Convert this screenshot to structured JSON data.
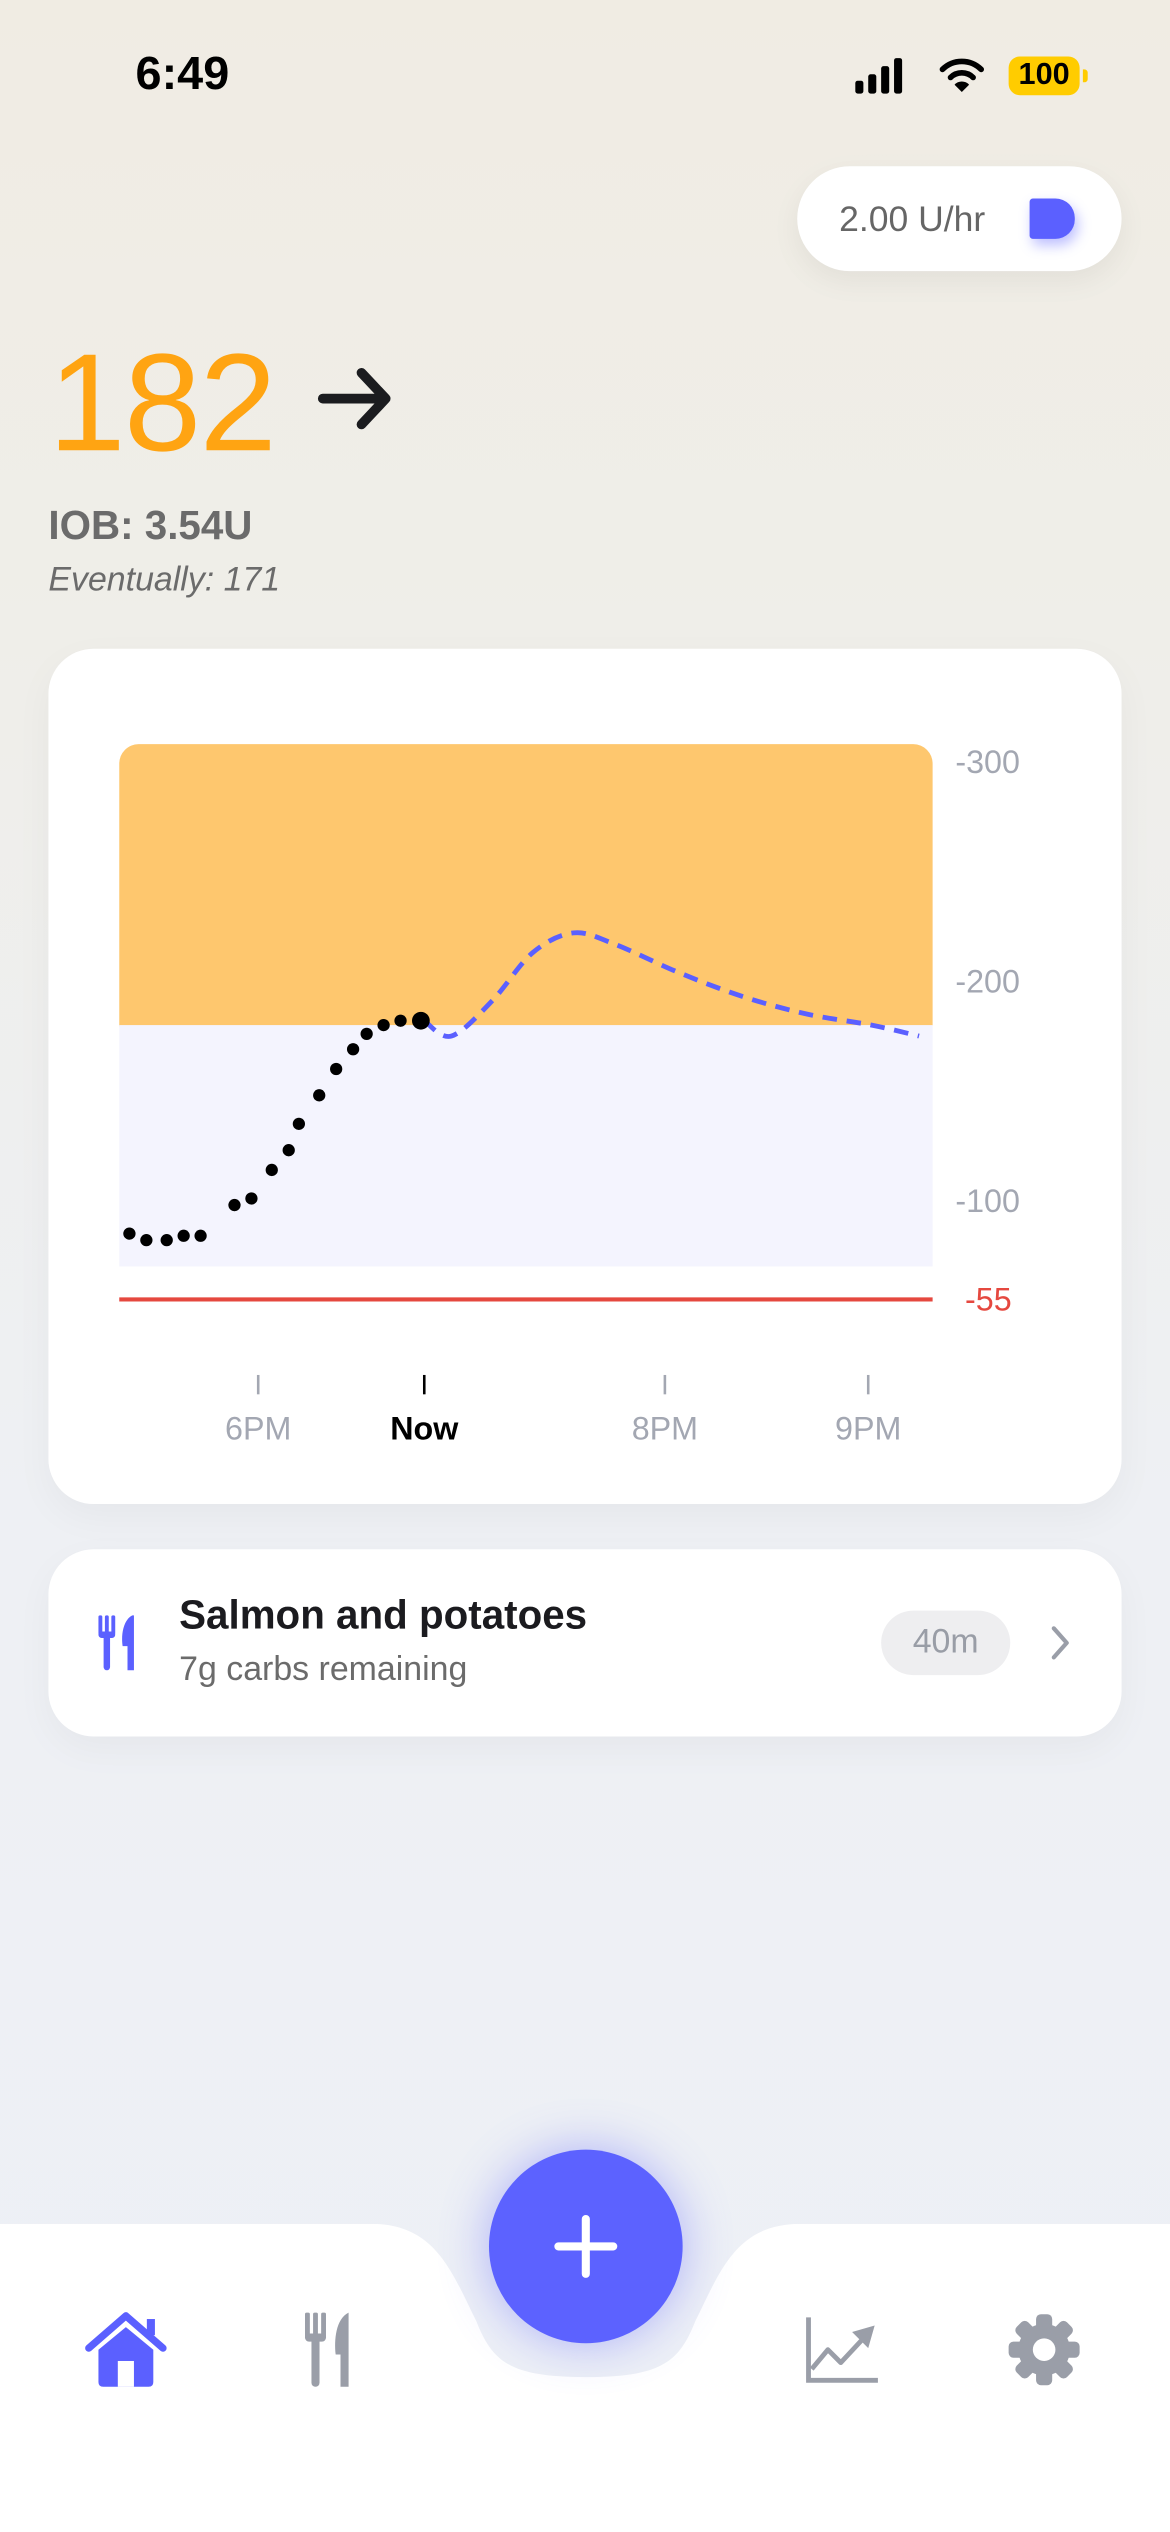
{
  "status_bar": {
    "time": "6:49",
    "battery": "100",
    "signal_icon": "cellular-signal-icon",
    "wifi_icon": "wifi-icon"
  },
  "basal_rate": {
    "value": "2.00 U/hr",
    "icon": "pump-icon",
    "color": "#5b60ff"
  },
  "glucose": {
    "value": "182",
    "trend_icon": "arrow-right-icon",
    "color": "#ffa412",
    "iob": "IOB: 3.54U",
    "eventually": "Eventually: 171"
  },
  "chart_data": {
    "type": "scatter",
    "title": "",
    "xlabel": "",
    "ylabel": "",
    "x_ticks": [
      {
        "label": "6PM",
        "time": "18:00"
      },
      {
        "label": "Now",
        "time": "18:49"
      },
      {
        "label": "8PM",
        "time": "20:00"
      },
      {
        "label": "9PM",
        "time": "21:00"
      }
    ],
    "xlim": [
      "17:19",
      "21:19"
    ],
    "y_ticks": [
      {
        "label": "-300",
        "value": 300
      },
      {
        "label": "-200",
        "value": 200
      },
      {
        "label": "-100",
        "value": 100
      },
      {
        "label": "-55",
        "value": 55,
        "color": "#e5483f"
      }
    ],
    "ylim": [
      55,
      308
    ],
    "grid": false,
    "high_zone": {
      "from": 180,
      "to": 308,
      "color": "#fec76e"
    },
    "target_range": {
      "from": 70,
      "to": 180,
      "color": "#f4f4fe"
    },
    "low_threshold": {
      "value": 55,
      "color": "#e5483f"
    },
    "series": [
      {
        "kind": "readings",
        "color": "#000000",
        "points": [
          [
            "17:22",
            85
          ],
          [
            "17:27",
            82
          ],
          [
            "17:33",
            82
          ],
          [
            "17:38",
            84
          ],
          [
            "17:43",
            84
          ],
          [
            "17:53",
            98
          ],
          [
            "17:58",
            101
          ],
          [
            "18:04",
            114
          ],
          [
            "18:09",
            123
          ],
          [
            "18:12",
            135
          ],
          [
            "18:18",
            148
          ],
          [
            "18:23",
            160
          ],
          [
            "18:28",
            169
          ],
          [
            "18:32",
            176
          ],
          [
            "18:37",
            180
          ],
          [
            "18:42",
            182
          ],
          [
            "18:48",
            182
          ]
        ]
      },
      {
        "kind": "prediction",
        "style": "dashed",
        "color": "#5b60ff",
        "points": [
          [
            "18:49",
            182
          ],
          [
            "18:57",
            175
          ],
          [
            "19:09",
            191
          ],
          [
            "19:21",
            213
          ],
          [
            "19:33",
            222
          ],
          [
            "19:45",
            217
          ],
          [
            "20:04",
            204
          ],
          [
            "20:23",
            193
          ],
          [
            "20:42",
            185
          ],
          [
            "21:01",
            180
          ],
          [
            "21:15",
            175
          ]
        ]
      }
    ]
  },
  "meal": {
    "title": "Salmon and potatoes",
    "subtitle": "7g carbs remaining",
    "badge": "40m",
    "icon": "fork-knife-icon"
  },
  "tabbar": {
    "items": [
      {
        "name": "home",
        "icon": "house-icon",
        "active": true
      },
      {
        "name": "meals",
        "icon": "fork-knife-icon",
        "active": false
      },
      {
        "name": "add",
        "icon": "plus-icon"
      },
      {
        "name": "trends",
        "icon": "chart-line-icon",
        "active": false
      },
      {
        "name": "settings",
        "icon": "gear-icon",
        "active": false
      }
    ],
    "active_color": "#5b60ff",
    "inactive_color": "#9a9ea8"
  }
}
